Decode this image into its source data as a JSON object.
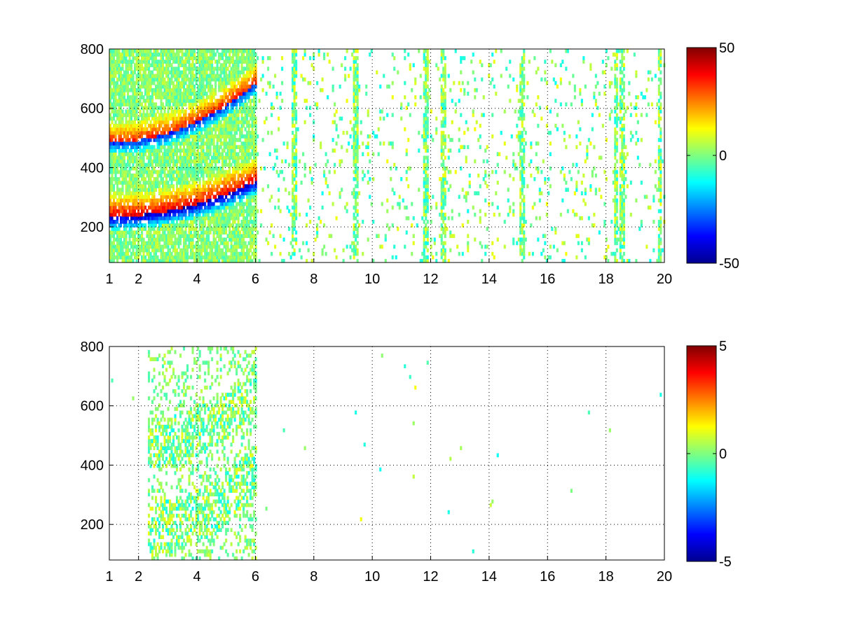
{
  "chart_data": [
    {
      "type": "heatmap",
      "title": "",
      "xlabel": "",
      "ylabel": "",
      "xlim": [
        1,
        20
      ],
      "ylim": [
        80,
        800
      ],
      "xticks": [
        1,
        2,
        4,
        6,
        8,
        10,
        12,
        14,
        16,
        18,
        20
      ],
      "xtick_labels": [
        "1",
        "2",
        "4",
        "6",
        "8",
        "10",
        "12",
        "14",
        "16",
        "18",
        "20"
      ],
      "yticks": [
        200,
        400,
        600,
        800
      ],
      "ytick_labels": [
        "200",
        "400",
        "600",
        "800"
      ],
      "grid": true,
      "colormap": "jet",
      "clim": [
        -50,
        50
      ],
      "colorbar_ticks": [
        50,
        0,
        -50
      ],
      "colorbar_tick_labels": [
        "50",
        "0",
        "-50"
      ],
      "features": {
        "dense_region_x": [
          1,
          6
        ],
        "lower_band": {
          "y_start": 230,
          "y_end": 350,
          "positive_value": 40,
          "negative_value": -45
        },
        "upper_band": {
          "y_start": 480,
          "y_end": 680,
          "positive_value": 35,
          "negative_value": -35
        },
        "noise_amplitude": 15,
        "stripe_columns_x": [
          7.3,
          9.4,
          11.8,
          12.4,
          15.1,
          18.3,
          18.5,
          19.8
        ]
      }
    },
    {
      "type": "heatmap",
      "title": "",
      "xlabel": "",
      "ylabel": "",
      "xlim": [
        1,
        20
      ],
      "ylim": [
        80,
        800
      ],
      "xticks": [
        1,
        2,
        4,
        6,
        8,
        10,
        12,
        14,
        16,
        18,
        20
      ],
      "xtick_labels": [
        "1",
        "2",
        "4",
        "6",
        "8",
        "10",
        "12",
        "14",
        "16",
        "18",
        "20"
      ],
      "yticks": [
        200,
        400,
        600,
        800
      ],
      "ytick_labels": [
        "200",
        "400",
        "600",
        "800"
      ],
      "grid": true,
      "colormap": "jet",
      "clim": [
        -5,
        5
      ],
      "colorbar_ticks": [
        5,
        0,
        -5
      ],
      "colorbar_tick_labels": [
        "5",
        "0",
        "-5"
      ],
      "features": {
        "dense_region_x": [
          2.3,
          6
        ],
        "lower_band": {
          "y_start": 180,
          "y_end": 380
        },
        "upper_band": {
          "y_start": 470,
          "y_end": 650
        },
        "noise_amplitude": 1.5
      }
    }
  ]
}
